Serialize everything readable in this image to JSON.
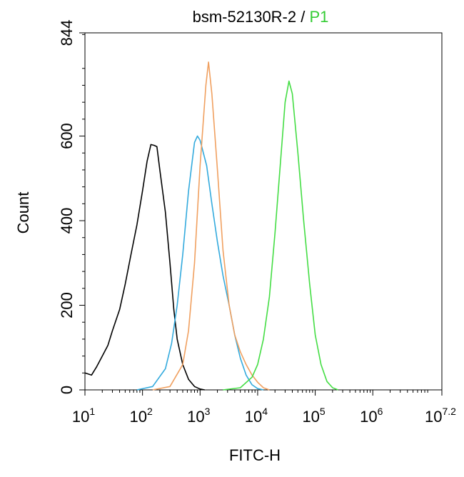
{
  "chart_data": {
    "type": "line",
    "title_parts": [
      {
        "text": "bsm-52130R-2",
        "color": "#000000"
      },
      {
        "text": " / ",
        "color": "#000000"
      },
      {
        "text": "P1",
        "color": "#33cc33"
      }
    ],
    "xlabel": "FITC-H",
    "ylabel": "Count",
    "xscale": "log",
    "xlim": [
      10,
      15848931.9
    ],
    "ylim": [
      0,
      844
    ],
    "x_ticks": [
      {
        "base": "10",
        "exp": "1",
        "value": 10
      },
      {
        "base": "10",
        "exp": "2",
        "value": 100
      },
      {
        "base": "10",
        "exp": "3",
        "value": 1000
      },
      {
        "base": "10",
        "exp": "4",
        "value": 10000
      },
      {
        "base": "10",
        "exp": "5",
        "value": 100000
      },
      {
        "base": "10",
        "exp": "6",
        "value": 1000000
      },
      {
        "base": "10",
        "exp": "7.2",
        "value": 15848931.9
      }
    ],
    "y_ticks": [
      {
        "label": "0",
        "value": 0
      },
      {
        "label": "200",
        "value": 200
      },
      {
        "label": "400",
        "value": 400
      },
      {
        "label": "600",
        "value": 600
      },
      {
        "label": "844",
        "value": 844
      }
    ],
    "grid": false,
    "series": [
      {
        "color": "#000000",
        "points": [
          [
            10,
            40
          ],
          [
            13,
            35
          ],
          [
            16,
            55
          ],
          [
            20,
            80
          ],
          [
            25,
            105
          ],
          [
            30,
            140
          ],
          [
            40,
            190
          ],
          [
            50,
            250
          ],
          [
            63,
            320
          ],
          [
            80,
            390
          ],
          [
            100,
            470
          ],
          [
            120,
            540
          ],
          [
            140,
            580
          ],
          [
            160,
            578
          ],
          [
            178,
            575
          ],
          [
            200,
            520
          ],
          [
            250,
            420
          ],
          [
            300,
            300
          ],
          [
            350,
            190
          ],
          [
            400,
            120
          ],
          [
            500,
            60
          ],
          [
            630,
            25
          ],
          [
            800,
            8
          ],
          [
            1000,
            2
          ],
          [
            1200,
            0
          ]
        ]
      },
      {
        "color": "#33aadd",
        "points": [
          [
            80,
            0
          ],
          [
            150,
            8
          ],
          [
            250,
            50
          ],
          [
            320,
            110
          ],
          [
            400,
            200
          ],
          [
            500,
            320
          ],
          [
            630,
            470
          ],
          [
            800,
            585
          ],
          [
            900,
            600
          ],
          [
            1000,
            590
          ],
          [
            1300,
            530
          ],
          [
            1600,
            440
          ],
          [
            2000,
            350
          ],
          [
            2500,
            270
          ],
          [
            3200,
            200
          ],
          [
            4000,
            130
          ],
          [
            5000,
            75
          ],
          [
            6300,
            35
          ],
          [
            8000,
            12
          ],
          [
            10000,
            3
          ],
          [
            12600,
            0
          ]
        ]
      },
      {
        "color": "#f0a060",
        "points": [
          [
            150,
            0
          ],
          [
            300,
            8
          ],
          [
            500,
            60
          ],
          [
            630,
            140
          ],
          [
            800,
            300
          ],
          [
            1000,
            530
          ],
          [
            1260,
            720
          ],
          [
            1400,
            775
          ],
          [
            1600,
            700
          ],
          [
            2000,
            520
          ],
          [
            2500,
            330
          ],
          [
            3200,
            200
          ],
          [
            4000,
            130
          ],
          [
            5000,
            90
          ],
          [
            6300,
            60
          ],
          [
            8000,
            35
          ],
          [
            10000,
            18
          ],
          [
            12600,
            5
          ],
          [
            16000,
            0
          ]
        ]
      },
      {
        "color": "#44dd44",
        "points": [
          [
            2500,
            0
          ],
          [
            5000,
            5
          ],
          [
            8000,
            30
          ],
          [
            10000,
            60
          ],
          [
            12600,
            120
          ],
          [
            16000,
            220
          ],
          [
            20000,
            370
          ],
          [
            25000,
            540
          ],
          [
            30000,
            680
          ],
          [
            35000,
            730
          ],
          [
            40000,
            700
          ],
          [
            50000,
            560
          ],
          [
            63000,
            400
          ],
          [
            80000,
            250
          ],
          [
            100000,
            130
          ],
          [
            126000,
            60
          ],
          [
            160000,
            20
          ],
          [
            200000,
            5
          ],
          [
            250000,
            0
          ]
        ]
      }
    ]
  }
}
